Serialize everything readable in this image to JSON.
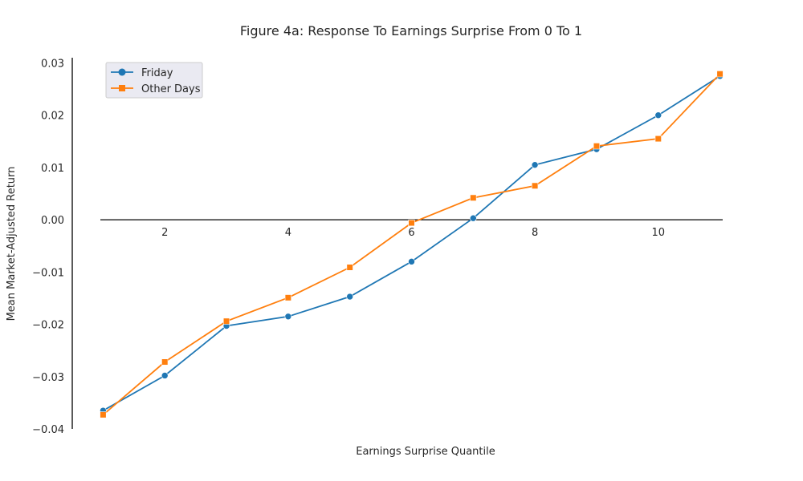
{
  "chart_data": {
    "type": "line",
    "title": "Figure 4a: Response To Earnings Surprise From 0 To 1",
    "xlabel": "Earnings Surprise Quantile",
    "ylabel": "Mean Market-Adjusted Return",
    "x": [
      1,
      2,
      3,
      4,
      5,
      6,
      7,
      8,
      9,
      10,
      11
    ],
    "xlim": [
      0.5,
      11.5
    ],
    "ylim": [
      -0.04,
      0.031
    ],
    "x_ticks": [
      2,
      4,
      6,
      8,
      10
    ],
    "x_tick_labels": [
      "2",
      "4",
      "6",
      "8",
      "10"
    ],
    "y_ticks": [
      -0.04,
      -0.03,
      -0.02,
      -0.01,
      0.0,
      0.01,
      0.02,
      0.03
    ],
    "y_tick_labels": [
      "−0.04",
      "−0.03",
      "−0.02",
      "−0.01",
      "0.00",
      "0.01",
      "0.02",
      "0.03"
    ],
    "grid": false,
    "legend_position": "top-left",
    "series": [
      {
        "name": "Friday",
        "color": "#1f77b4",
        "marker": "circle",
        "values": [
          -0.0365,
          -0.0298,
          -0.0203,
          -0.0185,
          -0.0147,
          -0.008,
          0.0003,
          0.0105,
          0.0135,
          0.02,
          0.0275
        ]
      },
      {
        "name": "Other Days",
        "color": "#ff7f0e",
        "marker": "square",
        "values": [
          -0.0373,
          -0.0272,
          -0.0194,
          -0.0149,
          -0.0091,
          -0.0006,
          0.0042,
          0.0065,
          0.0141,
          0.0155,
          0.0279
        ]
      }
    ]
  }
}
